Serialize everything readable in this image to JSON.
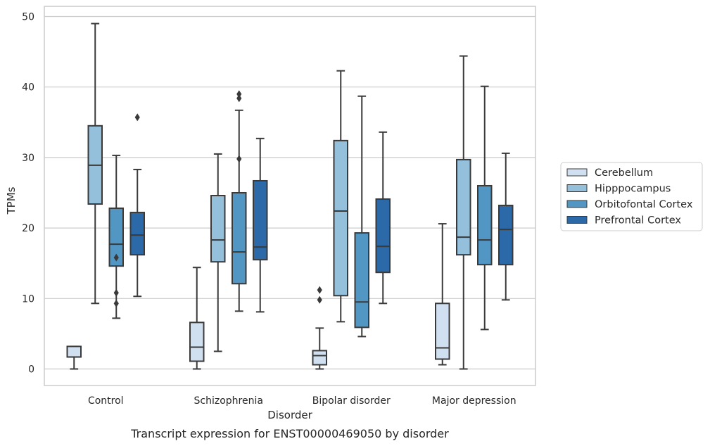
{
  "chart_data": {
    "type": "box",
    "title": "",
    "caption": "Transcript expression for ENST00000469050 by disorder",
    "xlabel": "Disorder",
    "ylabel": "TPMs",
    "ylim": [
      -2.3,
      51.5
    ],
    "yticks": [
      0,
      10,
      20,
      30,
      40,
      50
    ],
    "grid": true,
    "legend_position": "right",
    "categories": [
      "Control",
      "Schizophrenia",
      "Bipolar disorder",
      "Major depression"
    ],
    "series": [
      {
        "name": "Cerebellum",
        "color": "#d1e0f0",
        "boxes": [
          {
            "whislo": 0,
            "q1": 1.7,
            "med": 1.7,
            "q3": 3.2,
            "whishi": 3.2,
            "fliers": []
          },
          {
            "whislo": 0,
            "q1": 1.1,
            "med": 3.1,
            "q3": 6.6,
            "whishi": 14.4,
            "fliers": []
          },
          {
            "whislo": 0,
            "q1": 0.6,
            "med": 1.9,
            "q3": 2.6,
            "whishi": 5.8,
            "fliers": [
              9.8,
              11.2
            ]
          },
          {
            "whislo": 0.6,
            "q1": 1.4,
            "med": 3.0,
            "q3": 9.3,
            "whishi": 20.6,
            "fliers": []
          }
        ]
      },
      {
        "name": "Hipppocampus",
        "color": "#94c0dc",
        "boxes": [
          {
            "whislo": 9.3,
            "q1": 23.4,
            "med": 28.9,
            "q3": 34.5,
            "whishi": 49.0,
            "fliers": []
          },
          {
            "whislo": 2.5,
            "q1": 15.2,
            "med": 18.3,
            "q3": 24.6,
            "whishi": 30.5,
            "fliers": []
          },
          {
            "whislo": 6.7,
            "q1": 10.4,
            "med": 22.4,
            "q3": 32.4,
            "whishi": 42.3,
            "fliers": []
          },
          {
            "whislo": 0,
            "q1": 16.2,
            "med": 18.7,
            "q3": 29.7,
            "whishi": 44.4,
            "fliers": []
          }
        ]
      },
      {
        "name": "Orbitofontal Cortex",
        "color": "#5296c3",
        "boxes": [
          {
            "whislo": 7.2,
            "q1": 14.6,
            "med": 17.7,
            "q3": 22.8,
            "whishi": 30.3,
            "fliers": [
              9.3,
              10.8,
              15.8
            ]
          },
          {
            "whislo": 8.2,
            "q1": 12.1,
            "med": 16.6,
            "q3": 25.0,
            "whishi": 36.7,
            "fliers": [
              29.8,
              38.4,
              39.0
            ]
          },
          {
            "whislo": 4.6,
            "q1": 5.9,
            "med": 9.5,
            "q3": 19.3,
            "whishi": 38.7,
            "fliers": []
          },
          {
            "whislo": 5.6,
            "q1": 14.8,
            "med": 18.3,
            "q3": 26.0,
            "whishi": 40.1,
            "fliers": []
          }
        ]
      },
      {
        "name": "Prefrontal Cortex",
        "color": "#2b69a9",
        "boxes": [
          {
            "whislo": 10.3,
            "q1": 16.2,
            "med": 19.0,
            "q3": 22.2,
            "whishi": 28.3,
            "fliers": [
              35.7
            ]
          },
          {
            "whislo": 8.1,
            "q1": 15.5,
            "med": 17.3,
            "q3": 26.7,
            "whishi": 32.7,
            "fliers": []
          },
          {
            "whislo": 9.3,
            "q1": 13.7,
            "med": 17.4,
            "q3": 24.1,
            "whishi": 33.6,
            "fliers": []
          },
          {
            "whislo": 9.8,
            "q1": 14.8,
            "med": 19.8,
            "q3": 23.2,
            "whishi": 30.6,
            "fliers": []
          }
        ]
      }
    ]
  }
}
